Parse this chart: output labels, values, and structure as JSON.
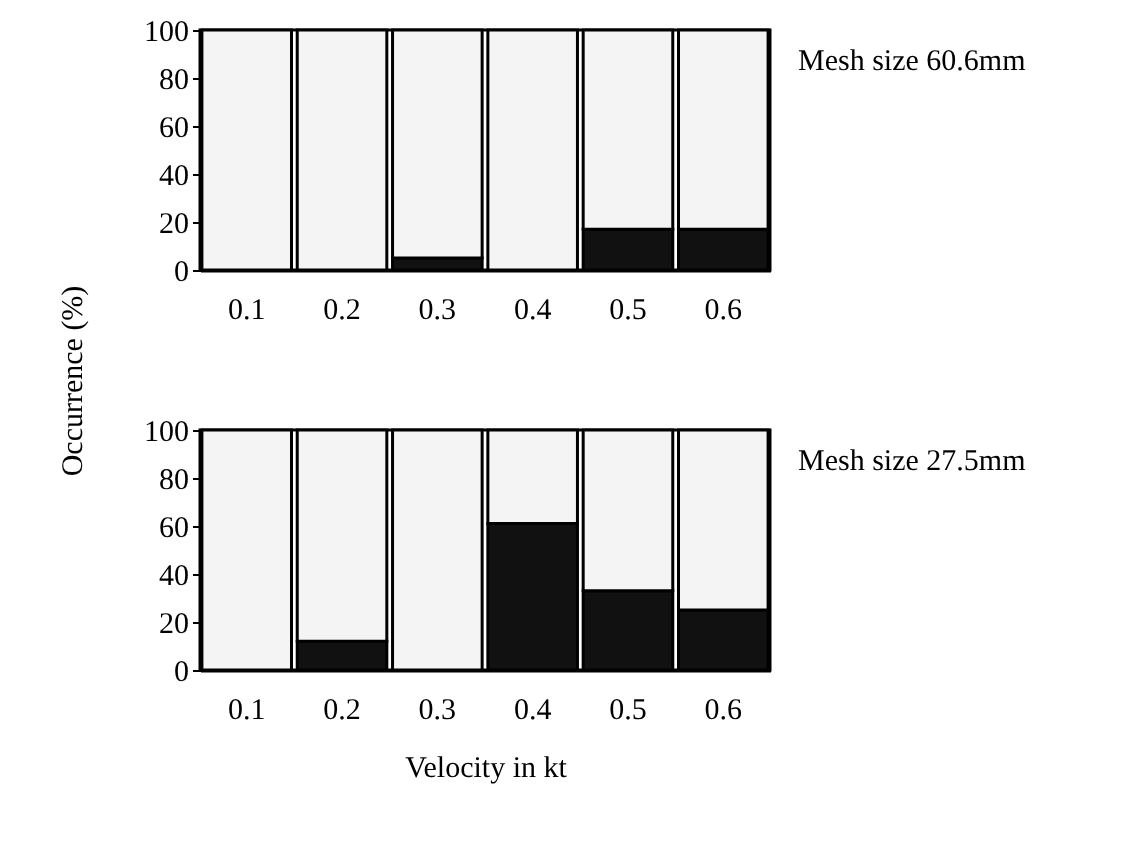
{
  "chart_data": [
    {
      "type": "bar",
      "stacked": true,
      "annotations": [
        "Mesh size 60.6mm"
      ],
      "ylabel": "Occurrence (%)",
      "categories": [
        "0.1",
        "0.2",
        "0.3",
        "0.4",
        "0.5",
        "0.6"
      ],
      "ylim": [
        0,
        100
      ],
      "yticks": [
        0,
        20,
        40,
        60,
        80,
        100
      ],
      "grid": false,
      "legend": false,
      "series": [
        {
          "color": "#111111",
          "values": [
            0,
            0,
            5,
            0,
            17,
            17
          ]
        },
        {
          "color": "#f4f4f4",
          "values": [
            100,
            100,
            95,
            100,
            83,
            83
          ]
        }
      ]
    },
    {
      "type": "bar",
      "stacked": true,
      "annotations": [
        "Mesh size 27.5mm"
      ],
      "xlabel": "Velocity in kt",
      "categories": [
        "0.1",
        "0.2",
        "0.3",
        "0.4",
        "0.5",
        "0.6"
      ],
      "ylim": [
        0,
        100
      ],
      "yticks": [
        0,
        20,
        40,
        60,
        80,
        100
      ],
      "grid": false,
      "legend": false,
      "series": [
        {
          "color": "#111111",
          "values": [
            0,
            12,
            0,
            61,
            33,
            25
          ]
        },
        {
          "color": "#f4f4f4",
          "values": [
            100,
            88,
            100,
            39,
            67,
            75
          ]
        }
      ]
    }
  ]
}
